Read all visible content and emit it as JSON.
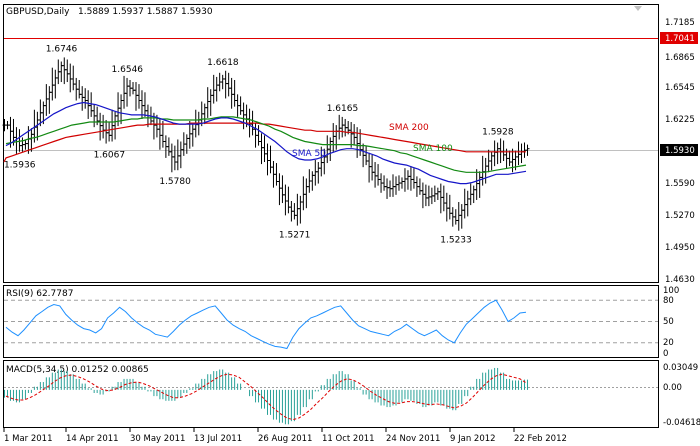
{
  "header": {
    "symbol": "GBPUSD,Daily",
    "ohlc": "1.5889 1.5937 1.5887 1.5930"
  },
  "chart_data": [
    {
      "type": "line",
      "title": "GBPUSD,Daily",
      "x_labels": [
        "1 Mar 2011",
        "14 Apr 2011",
        "30 May 2011",
        "13 Jul 2011",
        "26 Aug 2011",
        "11 Oct 2011",
        "24 Nov 2011",
        "9 Jan 2012",
        "22 Feb 2012"
      ],
      "ylim": [
        1.463,
        1.7185
      ],
      "yticks": [
        "1.7185",
        "1.6865",
        "1.6545",
        "1.6225",
        "1.5590",
        "1.5270",
        "1.4950",
        "1.4630"
      ],
      "price_badges": [
        "1.7041",
        "1.5930"
      ],
      "close_series": [
        1.616,
        1.604,
        1.596,
        1.598,
        1.607,
        1.621,
        1.635,
        1.648,
        1.662,
        1.674,
        1.666,
        1.656,
        1.646,
        1.64,
        1.63,
        1.62,
        1.611,
        1.606,
        1.625,
        1.64,
        1.654,
        1.65,
        1.64,
        1.63,
        1.62,
        1.612,
        1.6,
        1.59,
        1.58,
        1.592,
        1.603,
        1.612,
        1.621,
        1.633,
        1.645,
        1.655,
        1.661,
        1.652,
        1.64,
        1.63,
        1.622,
        1.612,
        1.6,
        1.588,
        1.575,
        1.561,
        1.548,
        1.536,
        1.528,
        1.541,
        1.556,
        1.567,
        1.574,
        1.585,
        1.6,
        1.61,
        1.616,
        1.611,
        1.604,
        1.592,
        1.581,
        1.57,
        1.563,
        1.556,
        1.554,
        1.558,
        1.561,
        1.566,
        1.56,
        1.552,
        1.545,
        1.547,
        1.551,
        1.54,
        1.53,
        1.523,
        1.533,
        1.544,
        1.553,
        1.565,
        1.576,
        1.586,
        1.593,
        1.587,
        1.58,
        1.585,
        1.59,
        1.593
      ],
      "sma50": [
        1.596,
        1.599,
        1.603,
        1.607,
        1.611,
        1.615,
        1.619,
        1.623,
        1.627,
        1.63,
        1.633,
        1.635,
        1.637,
        1.638,
        1.637,
        1.636,
        1.634,
        1.632,
        1.63,
        1.628,
        1.627,
        1.626,
        1.626,
        1.626,
        1.625,
        1.624,
        1.622,
        1.62,
        1.618,
        1.617,
        1.617,
        1.617,
        1.617,
        1.618,
        1.62,
        1.622,
        1.623,
        1.623,
        1.622,
        1.62,
        1.618,
        1.615,
        1.612,
        1.608,
        1.604,
        1.6,
        1.595,
        1.59,
        1.586,
        1.583,
        1.582,
        1.582,
        1.583,
        1.585,
        1.588,
        1.59,
        1.592,
        1.593,
        1.593,
        1.592,
        1.59,
        1.588,
        1.586,
        1.583,
        1.581,
        1.579,
        1.578,
        1.577,
        1.575,
        1.573,
        1.57,
        1.567,
        1.565,
        1.563,
        1.561,
        1.56,
        1.559,
        1.559,
        1.56,
        1.562,
        1.564,
        1.566,
        1.568,
        1.568,
        1.568,
        1.569,
        1.57,
        1.571
      ],
      "sma100": [
        1.598,
        1.599,
        1.6,
        1.601,
        1.603,
        1.604,
        1.606,
        1.608,
        1.61,
        1.612,
        1.614,
        1.616,
        1.617,
        1.618,
        1.619,
        1.619,
        1.619,
        1.619,
        1.619,
        1.62,
        1.621,
        1.622,
        1.622,
        1.623,
        1.623,
        1.623,
        1.622,
        1.622,
        1.621,
        1.621,
        1.621,
        1.621,
        1.621,
        1.622,
        1.622,
        1.623,
        1.624,
        1.624,
        1.624,
        1.623,
        1.622,
        1.621,
        1.619,
        1.617,
        1.615,
        1.612,
        1.61,
        1.607,
        1.604,
        1.602,
        1.6,
        1.599,
        1.598,
        1.597,
        1.597,
        1.597,
        1.597,
        1.597,
        1.597,
        1.596,
        1.596,
        1.595,
        1.594,
        1.593,
        1.592,
        1.591,
        1.589,
        1.588,
        1.586,
        1.584,
        1.582,
        1.58,
        1.578,
        1.576,
        1.574,
        1.572,
        1.571,
        1.57,
        1.57,
        1.57,
        1.57,
        1.571,
        1.572,
        1.573,
        1.574,
        1.575,
        1.576,
        1.577
      ],
      "sma200": [
        1.584,
        1.586,
        1.588,
        1.59,
        1.592,
        1.594,
        1.596,
        1.598,
        1.6,
        1.602,
        1.604,
        1.605,
        1.606,
        1.607,
        1.608,
        1.609,
        1.61,
        1.611,
        1.612,
        1.613,
        1.614,
        1.615,
        1.616,
        1.616,
        1.617,
        1.617,
        1.617,
        1.617,
        1.617,
        1.617,
        1.617,
        1.618,
        1.618,
        1.618,
        1.618,
        1.618,
        1.618,
        1.618,
        1.618,
        1.618,
        1.618,
        1.618,
        1.618,
        1.617,
        1.617,
        1.616,
        1.615,
        1.614,
        1.613,
        1.612,
        1.611,
        1.611,
        1.61,
        1.61,
        1.61,
        1.61,
        1.61,
        1.609,
        1.609,
        1.608,
        1.607,
        1.606,
        1.605,
        1.604,
        1.603,
        1.602,
        1.601,
        1.6,
        1.599,
        1.598,
        1.597,
        1.596,
        1.595,
        1.594,
        1.593,
        1.592,
        1.591,
        1.59,
        1.59,
        1.59,
        1.59,
        1.59,
        1.59,
        1.59,
        1.59,
        1.59,
        1.59,
        1.59
      ],
      "annotations": [
        {
          "text": "1.6746",
          "i": 9,
          "pos": "above"
        },
        {
          "text": "1.6546",
          "i": 20,
          "pos": "above"
        },
        {
          "text": "1.6618",
          "i": 36,
          "pos": "above"
        },
        {
          "text": "1.5936",
          "i": 2,
          "pos": "below"
        },
        {
          "text": "1.6067",
          "i": 17,
          "pos": "below"
        },
        {
          "text": "1.5780",
          "i": 28,
          "pos": "below"
        },
        {
          "text": "1.5271",
          "i": 48,
          "pos": "below"
        },
        {
          "text": "1.6165",
          "i": 56,
          "pos": "above"
        },
        {
          "text": "1.5233",
          "i": 75,
          "pos": "below"
        },
        {
          "text": "1.5928",
          "i": 82,
          "pos": "above"
        }
      ],
      "ma_labels": [
        {
          "text": "SMA 200",
          "color": "#d10000"
        },
        {
          "text": "SMA 100",
          "color": "#138a13"
        },
        {
          "text": "SMA 50",
          "color": "#1515c8"
        }
      ]
    },
    {
      "type": "line",
      "title": "RSI(9) 62.7787",
      "ylim": [
        0,
        100
      ],
      "yticks": [
        "100",
        "80",
        "50",
        "20",
        "0"
      ],
      "levels": [
        80,
        50,
        20
      ],
      "values": [
        42,
        35,
        30,
        38,
        48,
        58,
        64,
        70,
        74,
        72,
        60,
        52,
        45,
        40,
        38,
        34,
        40,
        55,
        62,
        70,
        64,
        55,
        48,
        42,
        38,
        32,
        30,
        28,
        36,
        45,
        52,
        58,
        62,
        66,
        70,
        72,
        62,
        52,
        45,
        40,
        36,
        30,
        26,
        22,
        18,
        15,
        14,
        12,
        28,
        40,
        48,
        55,
        58,
        62,
        66,
        70,
        72,
        62,
        52,
        44,
        40,
        36,
        34,
        32,
        30,
        36,
        40,
        46,
        40,
        34,
        30,
        34,
        38,
        30,
        24,
        20,
        34,
        46,
        54,
        62,
        70,
        76,
        80,
        66,
        50,
        55,
        62,
        63
      ]
    },
    {
      "type": "bar",
      "title": "MACD(5,34,5) 0.01252 0.00865",
      "ylim": [
        -0.04618,
        0.03049
      ],
      "yticks": [
        "0.03049",
        "0.00",
        "-0.04618"
      ],
      "histogram": [
        -0.01,
        -0.014,
        -0.016,
        -0.012,
        -0.004,
        0.004,
        0.01,
        0.016,
        0.022,
        0.026,
        0.024,
        0.02,
        0.014,
        0.008,
        0.002,
        -0.004,
        -0.006,
        -0.002,
        0.004,
        0.01,
        0.014,
        0.014,
        0.01,
        0.004,
        -0.002,
        -0.008,
        -0.012,
        -0.014,
        -0.014,
        -0.01,
        -0.004,
        0.002,
        0.008,
        0.014,
        0.02,
        0.024,
        0.026,
        0.022,
        0.016,
        0.008,
        0.0,
        -0.008,
        -0.016,
        -0.024,
        -0.032,
        -0.038,
        -0.042,
        -0.044,
        -0.04,
        -0.032,
        -0.022,
        -0.012,
        -0.002,
        0.006,
        0.014,
        0.02,
        0.024,
        0.02,
        0.012,
        0.002,
        -0.006,
        -0.012,
        -0.016,
        -0.02,
        -0.022,
        -0.02,
        -0.016,
        -0.012,
        -0.014,
        -0.018,
        -0.022,
        -0.02,
        -0.016,
        -0.02,
        -0.024,
        -0.026,
        -0.018,
        -0.008,
        0.004,
        0.014,
        0.022,
        0.026,
        0.028,
        0.022,
        0.014,
        0.012,
        0.012,
        0.013
      ],
      "signal": [
        -0.008,
        -0.011,
        -0.013,
        -0.013,
        -0.01,
        -0.006,
        -0.001,
        0.004,
        0.01,
        0.015,
        0.018,
        0.019,
        0.017,
        0.014,
        0.01,
        0.005,
        0.001,
        -0.001,
        0.0,
        0.003,
        0.007,
        0.009,
        0.01,
        0.008,
        0.005,
        0.001,
        -0.003,
        -0.007,
        -0.01,
        -0.01,
        -0.008,
        -0.005,
        -0.001,
        0.004,
        0.009,
        0.014,
        0.018,
        0.02,
        0.019,
        0.016,
        0.01,
        0.004,
        -0.003,
        -0.01,
        -0.018,
        -0.025,
        -0.031,
        -0.036,
        -0.038,
        -0.036,
        -0.031,
        -0.025,
        -0.017,
        -0.01,
        -0.002,
        0.005,
        0.011,
        0.014,
        0.013,
        0.009,
        0.004,
        -0.002,
        -0.007,
        -0.011,
        -0.015,
        -0.017,
        -0.017,
        -0.015,
        -0.015,
        -0.016,
        -0.018,
        -0.019,
        -0.018,
        -0.019,
        -0.021,
        -0.023,
        -0.021,
        -0.017,
        -0.01,
        -0.002,
        0.006,
        0.013,
        0.018,
        0.02,
        0.018,
        0.016,
        0.014,
        0.009
      ]
    }
  ]
}
